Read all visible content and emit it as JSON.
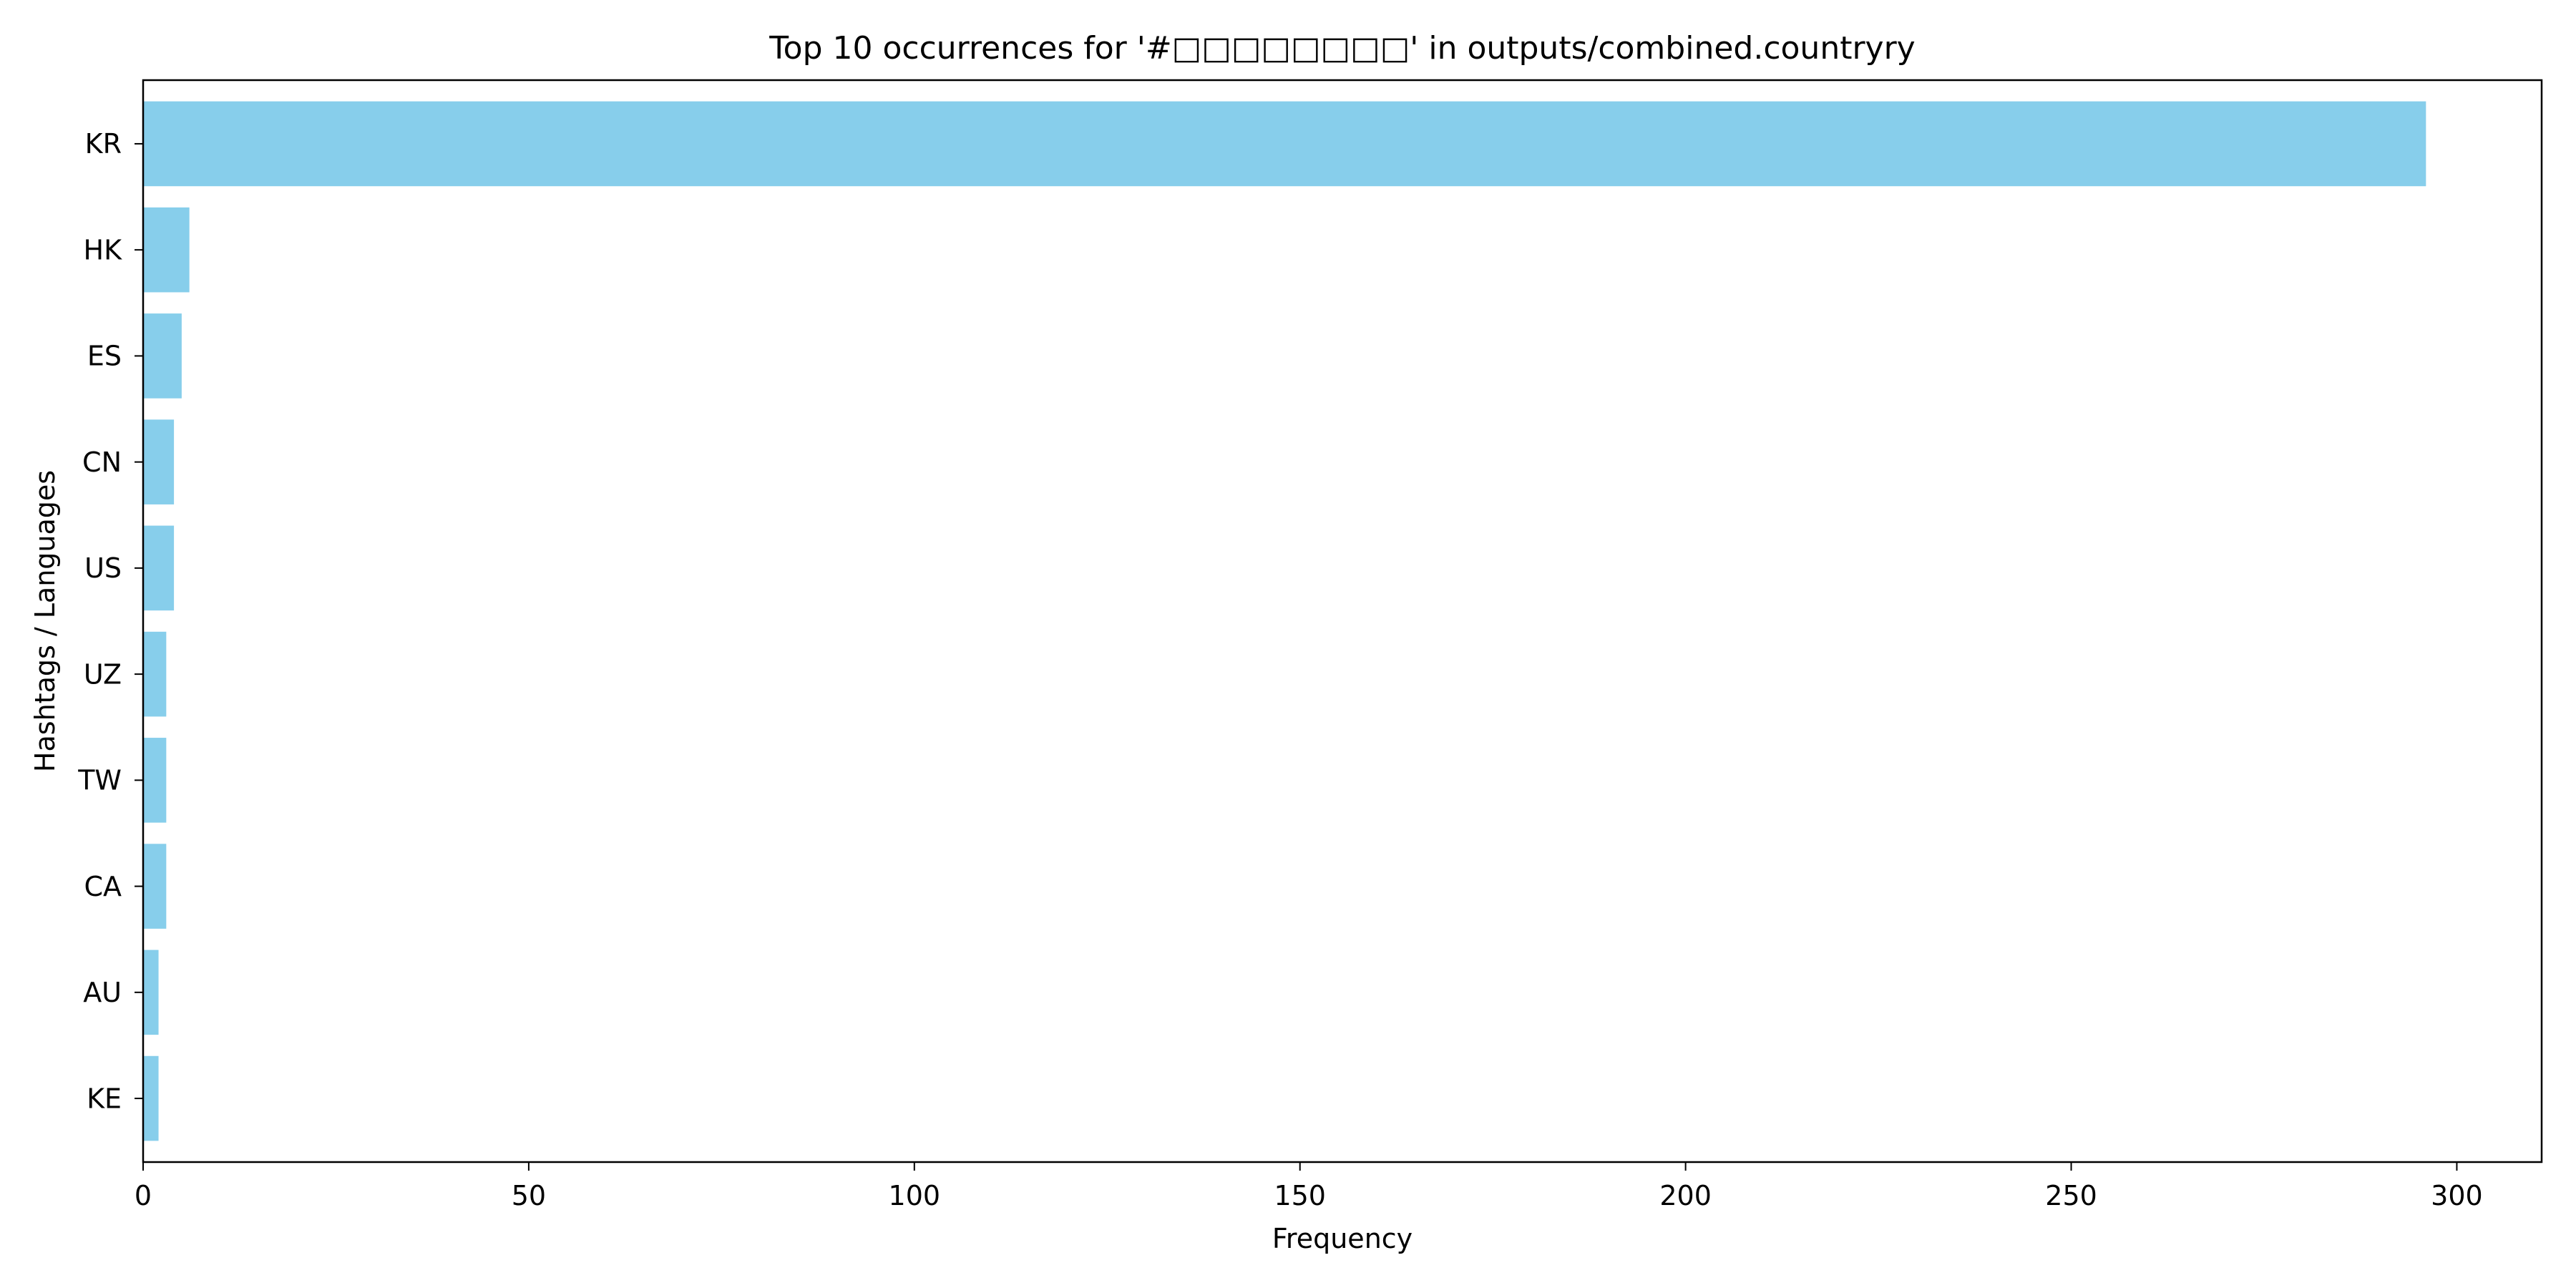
{
  "chart_data": {
    "type": "bar",
    "orientation": "horizontal",
    "title": "Top 10 occurrences for '#□□□□□□□□' in outputs/combined.countryry",
    "xlabel": "Frequency",
    "ylabel": "Hashtags / Languages",
    "categories": [
      "KR",
      "HK",
      "ES",
      "CN",
      "US",
      "UZ",
      "TW",
      "CA",
      "AU",
      "KE"
    ],
    "values": [
      296,
      6,
      5,
      4,
      4,
      3,
      3,
      3,
      2,
      2
    ],
    "xlim": [
      0,
      311
    ],
    "xticks": [
      0,
      50,
      100,
      150,
      200,
      250,
      300
    ],
    "grid": false,
    "legend": "none",
    "bar_color": "#87CEEB"
  }
}
